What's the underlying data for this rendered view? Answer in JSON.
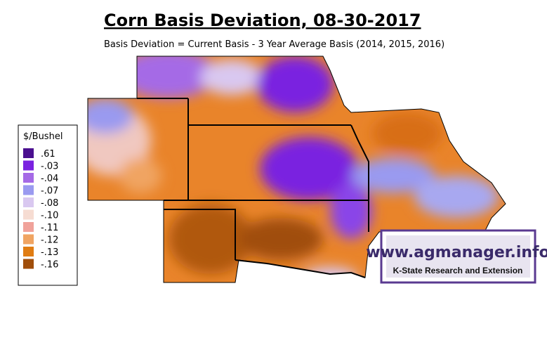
{
  "title": "Corn Basis Deviation, 08-30-2017",
  "subtitle": "Basis Deviation = Current Basis - 3 Year Average Basis (2014, 2015, 2016)",
  "legend": {
    "title": "$/Bushel",
    "items": [
      {
        "label": ".61",
        "color": "#4a0f8f"
      },
      {
        "label": "-.03",
        "color": "#7a22e0"
      },
      {
        "label": "-.04",
        "color": "#a56ae6"
      },
      {
        "label": "-.07",
        "color": "#9a9af0"
      },
      {
        "label": "-.08",
        "color": "#d9c8f0"
      },
      {
        "label": "-.10",
        "color": "#f6dcd2"
      },
      {
        "label": "-.11",
        "color": "#f0a29a"
      },
      {
        "label": "-.12",
        "color": "#f0a462"
      },
      {
        "label": "-.13",
        "color": "#e07c12"
      },
      {
        "label": "-.16",
        "color": "#a04e0a"
      }
    ]
  },
  "logo": {
    "url": "www.agmanager.info",
    "org": "K-State Research and Extension"
  }
}
